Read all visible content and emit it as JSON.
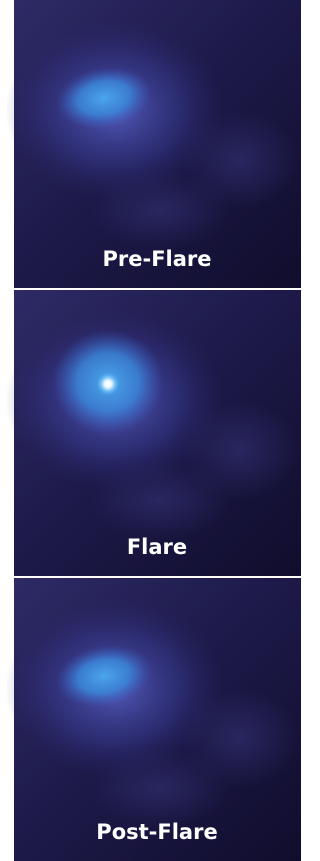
{
  "panels": [
    {
      "label": "Pre-Flare"
    },
    {
      "label": "Flare"
    },
    {
      "label": "Post-Flare"
    }
  ]
}
